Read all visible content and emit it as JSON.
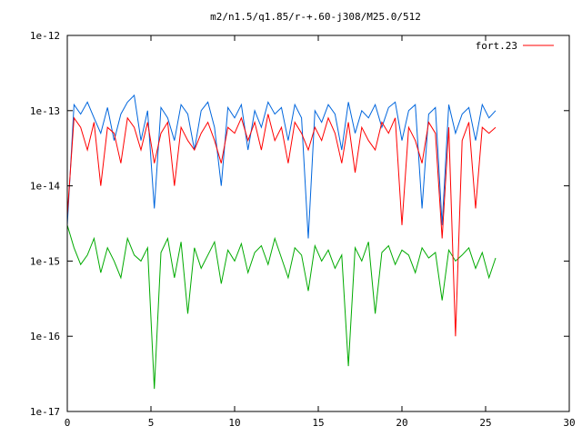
{
  "chart_data": {
    "type": "line",
    "title": "m2/n1.5/q1.85/r-+.60-j308/M25.0/512",
    "xlabel": "",
    "ylabel": "",
    "x_range": [
      0,
      30
    ],
    "y_range": [
      1e-17,
      1e-12
    ],
    "y_scale": "log",
    "x_ticks": [
      {
        "value": 0,
        "label": "0"
      },
      {
        "value": 5,
        "label": "5"
      },
      {
        "value": 10,
        "label": "10"
      },
      {
        "value": 15,
        "label": "15"
      },
      {
        "value": 20,
        "label": "20"
      },
      {
        "value": 25,
        "label": "25"
      },
      {
        "value": 30,
        "label": "30"
      }
    ],
    "y_ticks": [
      {
        "value": 1e-12,
        "label": "1e-12"
      },
      {
        "value": 1e-13,
        "label": "1e-13"
      },
      {
        "value": 1e-14,
        "label": "1e-14"
      },
      {
        "value": 1e-15,
        "label": "1e-15"
      },
      {
        "value": 1e-16,
        "label": "1e-16"
      },
      {
        "value": 1e-17,
        "label": "1e-17"
      }
    ],
    "grid": false,
    "legend": {
      "position": "top-right",
      "entries": [
        {
          "label": "fort.23",
          "color": "#ff0000"
        }
      ]
    },
    "series": [
      {
        "name": "fort.23",
        "color": "#ff0000",
        "x": [
          0.0,
          0.4,
          0.8,
          1.2,
          1.6,
          2.0,
          2.4,
          2.8,
          3.2,
          3.6,
          4.0,
          4.4,
          4.8,
          5.2,
          5.6,
          6.0,
          6.4,
          6.8,
          7.2,
          7.6,
          8.0,
          8.4,
          8.8,
          9.2,
          9.6,
          10.0,
          10.4,
          10.8,
          11.2,
          11.6,
          12.0,
          12.4,
          12.8,
          13.2,
          13.6,
          14.0,
          14.4,
          14.8,
          15.2,
          15.6,
          16.0,
          16.4,
          16.8,
          17.2,
          17.6,
          18.0,
          18.4,
          18.8,
          19.2,
          19.6,
          20.0,
          20.4,
          20.8,
          21.2,
          21.6,
          22.0,
          22.4,
          22.8,
          23.2,
          23.6,
          24.0,
          24.4,
          24.8,
          25.2,
          25.6
        ],
        "y": [
          4e-15,
          8e-14,
          6e-14,
          3e-14,
          7e-14,
          1e-14,
          6e-14,
          5e-14,
          2e-14,
          8e-14,
          6e-14,
          3e-14,
          7e-14,
          2e-14,
          5e-14,
          7e-14,
          1e-14,
          6e-14,
          4e-14,
          3e-14,
          5e-14,
          7e-14,
          4e-14,
          2e-14,
          6e-14,
          5e-14,
          8e-14,
          4e-14,
          7e-14,
          3e-14,
          9e-14,
          4e-14,
          6e-14,
          2e-14,
          7e-14,
          5e-14,
          3e-14,
          6e-14,
          4e-14,
          8e-14,
          5e-14,
          2e-14,
          7e-14,
          1.5e-14,
          6e-14,
          4e-14,
          3e-14,
          7e-14,
          5e-14,
          8e-14,
          3e-15,
          6e-14,
          4e-14,
          2e-14,
          7e-14,
          5e-14,
          2e-15,
          6e-14,
          1e-16,
          4e-14,
          7e-14,
          5e-15,
          6e-14,
          5e-14,
          6e-14
        ]
      },
      {
        "name": "",
        "color": "#0066dd",
        "x": [
          0.0,
          0.4,
          0.8,
          1.2,
          1.6,
          2.0,
          2.4,
          2.8,
          3.2,
          3.6,
          4.0,
          4.4,
          4.8,
          5.2,
          5.6,
          6.0,
          6.4,
          6.8,
          7.2,
          7.6,
          8.0,
          8.4,
          8.8,
          9.2,
          9.6,
          10.0,
          10.4,
          10.8,
          11.2,
          11.6,
          12.0,
          12.4,
          12.8,
          13.2,
          13.6,
          14.0,
          14.4,
          14.8,
          15.2,
          15.6,
          16.0,
          16.4,
          16.8,
          17.2,
          17.6,
          18.0,
          18.4,
          18.8,
          19.2,
          19.6,
          20.0,
          20.4,
          20.8,
          21.2,
          21.6,
          22.0,
          22.4,
          22.8,
          23.2,
          23.6,
          24.0,
          24.4,
          24.8,
          25.2,
          25.6
        ],
        "y": [
          3e-15,
          1.2e-13,
          9e-14,
          1.3e-13,
          8e-14,
          5e-14,
          1.1e-13,
          4e-14,
          9e-14,
          1.3e-13,
          1.6e-13,
          4e-14,
          1e-13,
          5e-15,
          1.1e-13,
          8e-14,
          4e-14,
          1.2e-13,
          9e-14,
          3e-14,
          1e-13,
          1.3e-13,
          6e-14,
          1e-14,
          1.1e-13,
          8e-14,
          1.2e-13,
          3e-14,
          1e-13,
          6e-14,
          1.3e-13,
          9e-14,
          1.1e-13,
          4e-14,
          1.2e-13,
          8e-14,
          2e-15,
          1e-13,
          7e-14,
          1.2e-13,
          9e-14,
          3e-14,
          1.3e-13,
          5e-14,
          1e-13,
          8e-14,
          1.2e-13,
          6e-14,
          1.1e-13,
          1.3e-13,
          4e-14,
          1e-13,
          1.2e-13,
          5e-15,
          9e-14,
          1.1e-13,
          3e-15,
          1.2e-13,
          5e-14,
          9e-14,
          1.1e-13,
          4e-14,
          1.2e-13,
          8e-14,
          1e-13
        ]
      },
      {
        "name": "",
        "color": "#00aa00",
        "x": [
          0.0,
          0.4,
          0.8,
          1.2,
          1.6,
          2.0,
          2.4,
          2.8,
          3.2,
          3.6,
          4.0,
          4.4,
          4.8,
          5.2,
          5.6,
          6.0,
          6.4,
          6.8,
          7.2,
          7.6,
          8.0,
          8.4,
          8.8,
          9.2,
          9.6,
          10.0,
          10.4,
          10.8,
          11.2,
          11.6,
          12.0,
          12.4,
          12.8,
          13.2,
          13.6,
          14.0,
          14.4,
          14.8,
          15.2,
          15.6,
          16.0,
          16.4,
          16.8,
          17.2,
          17.6,
          18.0,
          18.4,
          18.8,
          19.2,
          19.6,
          20.0,
          20.4,
          20.8,
          21.2,
          21.6,
          22.0,
          22.4,
          22.8,
          23.2,
          23.6,
          24.0,
          24.4,
          24.8,
          25.2,
          25.6
        ],
        "y": [
          3e-15,
          1.5e-15,
          9e-16,
          1.2e-15,
          2e-15,
          7e-16,
          1.5e-15,
          1e-15,
          6e-16,
          2e-15,
          1.2e-15,
          1e-15,
          1.5e-15,
          2e-17,
          1.3e-15,
          2e-15,
          6e-16,
          1.8e-15,
          2e-16,
          1.5e-15,
          8e-16,
          1.2e-15,
          1.8e-15,
          5e-16,
          1.4e-15,
          1e-15,
          1.7e-15,
          7e-16,
          1.3e-15,
          1.6e-15,
          9e-16,
          2e-15,
          1.1e-15,
          6e-16,
          1.5e-15,
          1.2e-15,
          4e-16,
          1.6e-15,
          1e-15,
          1.4e-15,
          8e-16,
          1.2e-15,
          4e-17,
          1.5e-15,
          1e-15,
          1.8e-15,
          2e-16,
          1.3e-15,
          1.6e-15,
          9e-16,
          1.4e-15,
          1.2e-15,
          7e-16,
          1.5e-15,
          1.1e-15,
          1.3e-15,
          3e-16,
          1.4e-15,
          1e-15,
          1.2e-15,
          1.5e-15,
          8e-16,
          1.3e-15,
          6e-16,
          1.1e-15
        ]
      }
    ]
  }
}
